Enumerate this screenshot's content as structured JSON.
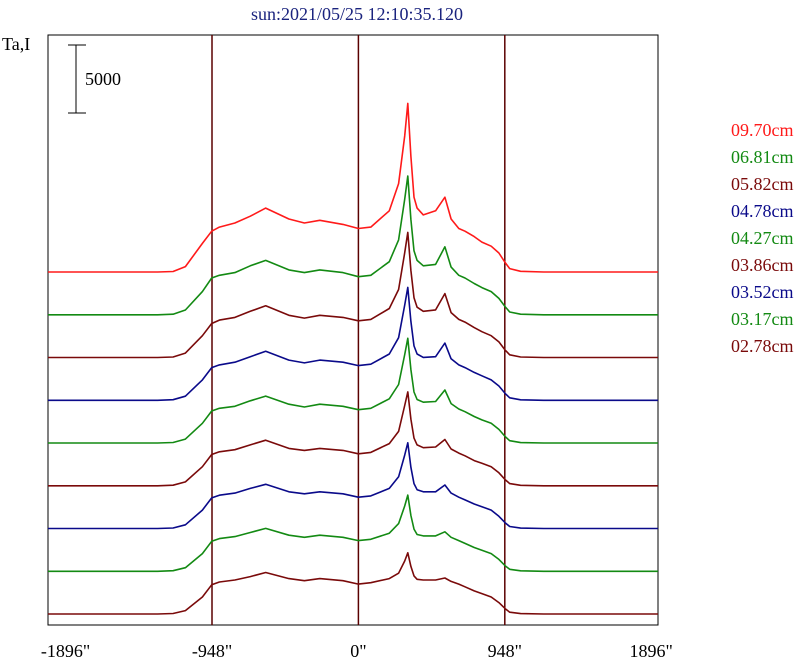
{
  "title": "sun:2021/05/25 12:10:35.120",
  "colors": {
    "title": "#1a237e",
    "frame": "#000000",
    "vline": "#5a0000",
    "red": "#ff1a1a",
    "green": "#138a13",
    "maroon": "#7a0a0a",
    "navy": "#0a0a8a"
  },
  "chart_data": {
    "type": "line",
    "title": "sun:2021/05/25 12:10:35.120",
    "ylabel": "Ta,I",
    "xlabel": "",
    "xlim": [
      -2010,
      1940
    ],
    "x_ticks": [
      {
        "value": -1896,
        "label": "-1896\""
      },
      {
        "value": -948,
        "label": "-948\""
      },
      {
        "value": 0,
        "label": "0\""
      },
      {
        "value": 948,
        "label": "948\""
      },
      {
        "value": 1896,
        "label": "1896\""
      }
    ],
    "vertical_lines": [
      -948,
      0,
      948
    ],
    "scale_bar": {
      "value": 5000,
      "label": "5000"
    },
    "trace_offset": 2140,
    "x": [
      -2010,
      -1300,
      -1200,
      -1120,
      -1010,
      -950,
      -900,
      -800,
      -700,
      -600,
      -450,
      -350,
      -250,
      -100,
      0,
      80,
      200,
      260,
      300,
      320,
      340,
      360,
      380,
      420,
      500,
      560,
      600,
      650,
      690,
      750,
      800,
      860,
      910,
      950,
      980,
      1050,
      1200,
      1940
    ],
    "series": [
      {
        "name": "09.70cm",
        "color": "#ff1a1a",
        "values": [
          0,
          0,
          40,
          400,
          2100,
          3000,
          3300,
          3600,
          4100,
          4700,
          3900,
          3600,
          3800,
          3500,
          3200,
          3300,
          4500,
          6500,
          10000,
          12400,
          8500,
          5500,
          4700,
          4200,
          4500,
          5500,
          3900,
          3200,
          3000,
          2600,
          2200,
          1900,
          1400,
          700,
          250,
          50,
          0,
          0
        ]
      },
      {
        "name": "06.81cm",
        "color": "#138a13",
        "values": [
          0,
          0,
          40,
          350,
          1700,
          2700,
          2900,
          3100,
          3600,
          4000,
          3300,
          3100,
          3300,
          3100,
          2800,
          2900,
          3900,
          5500,
          8500,
          10200,
          7000,
          4700,
          4000,
          3600,
          3700,
          5000,
          3500,
          2900,
          2700,
          2300,
          2000,
          1700,
          1200,
          600,
          200,
          40,
          0,
          0
        ]
      },
      {
        "name": "05.82cm",
        "color": "#7a0a0a",
        "values": [
          0,
          0,
          40,
          320,
          1600,
          2500,
          2750,
          2950,
          3400,
          3800,
          3100,
          2900,
          3100,
          2950,
          2700,
          2800,
          3600,
          5000,
          7700,
          9200,
          6400,
          4400,
          3700,
          3400,
          3500,
          4700,
          3300,
          2800,
          2600,
          2200,
          1900,
          1600,
          1150,
          550,
          200,
          40,
          0,
          0
        ]
      },
      {
        "name": "04.78cm",
        "color": "#0a0a8a",
        "values": [
          0,
          0,
          40,
          300,
          1500,
          2400,
          2600,
          2800,
          3200,
          3600,
          2950,
          2750,
          2950,
          2800,
          2550,
          2650,
          3400,
          4600,
          7000,
          8300,
          5800,
          4000,
          3400,
          3150,
          3200,
          4200,
          3050,
          2600,
          2400,
          2050,
          1800,
          1500,
          1050,
          500,
          180,
          30,
          0,
          0
        ]
      },
      {
        "name": "04.27cm",
        "color": "#138a13",
        "values": [
          0,
          0,
          40,
          290,
          1450,
          2350,
          2550,
          2700,
          3100,
          3450,
          2850,
          2650,
          2850,
          2700,
          2450,
          2550,
          3250,
          4300,
          6500,
          7700,
          5400,
          3750,
          3200,
          3000,
          3050,
          3900,
          2900,
          2500,
          2300,
          1950,
          1700,
          1450,
          1000,
          480,
          170,
          30,
          0,
          0
        ]
      },
      {
        "name": "03.86cm",
        "color": "#7a0a0a",
        "values": [
          0,
          0,
          40,
          280,
          1400,
          2300,
          2500,
          2650,
          3000,
          3350,
          2750,
          2600,
          2750,
          2600,
          2350,
          2450,
          3100,
          4000,
          5900,
          6900,
          4900,
          3500,
          3000,
          2800,
          2850,
          3400,
          2700,
          2400,
          2200,
          1850,
          1650,
          1400,
          950,
          450,
          160,
          30,
          0,
          0
        ]
      },
      {
        "name": "03.52cm",
        "color": "#0a0a8a",
        "values": [
          0,
          0,
          40,
          270,
          1350,
          2250,
          2450,
          2600,
          2950,
          3250,
          2700,
          2550,
          2700,
          2550,
          2300,
          2400,
          2950,
          3800,
          5400,
          6300,
          4500,
          3300,
          2850,
          2700,
          2700,
          3200,
          2600,
          2300,
          2100,
          1800,
          1600,
          1350,
          900,
          430,
          150,
          30,
          0,
          0
        ]
      },
      {
        "name": "03.17cm",
        "color": "#138a13",
        "values": [
          0,
          0,
          40,
          260,
          1300,
          2200,
          2400,
          2550,
          2850,
          3150,
          2650,
          2500,
          2650,
          2500,
          2250,
          2350,
          2800,
          3500,
          4800,
          5600,
          4100,
          3100,
          2700,
          2600,
          2600,
          2900,
          2500,
          2250,
          2050,
          1750,
          1550,
          1300,
          870,
          410,
          140,
          30,
          0,
          0
        ]
      },
      {
        "name": "02.78cm",
        "color": "#7a0a0a",
        "values": [
          0,
          0,
          40,
          250,
          1250,
          2150,
          2350,
          2500,
          2750,
          3050,
          2600,
          2450,
          2600,
          2450,
          2200,
          2300,
          2600,
          3000,
          3900,
          4500,
          3500,
          2800,
          2550,
          2500,
          2500,
          2650,
          2400,
          2200,
          2000,
          1700,
          1500,
          1250,
          840,
          400,
          130,
          30,
          0,
          0
        ]
      }
    ],
    "legend_position": "right"
  }
}
